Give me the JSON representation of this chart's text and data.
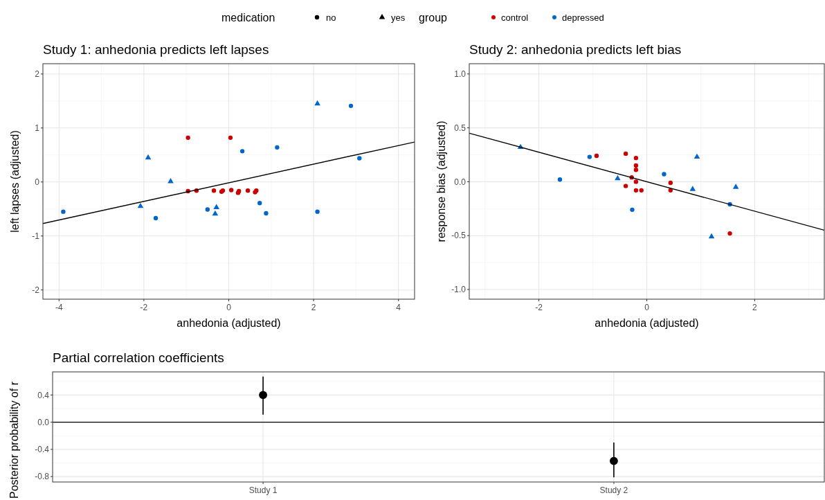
{
  "chart_data": [
    {
      "type": "scatter",
      "title": "Study 1: anhedonia predicts left lapses",
      "xlabel": "anhedonia (adjusted)",
      "ylabel": "left lapses (adjusted)",
      "legend": "top",
      "legend_title": "group",
      "annotations": [
        "medication",
        "no",
        "yes"
      ],
      "grid": true,
      "xlim": [
        -4.38,
        4.38
      ],
      "xticks": [
        -4,
        -2,
        0,
        2,
        4
      ],
      "ylim": [
        -2.17,
        2.19
      ],
      "yticks": [
        -2,
        -1,
        0,
        1,
        2
      ],
      "series": [
        {
          "name": "control",
          "color": "#cc0000",
          "marker": "circle",
          "x": [
            -0.96,
            0.04,
            -0.96,
            -0.76,
            -0.35,
            -0.17,
            -0.14,
            0.06,
            0.22,
            0.24,
            0.45,
            0.62,
            0.65
          ],
          "values": [
            0.82,
            0.82,
            -0.17,
            -0.16,
            -0.16,
            -0.18,
            -0.16,
            -0.15,
            -0.2,
            -0.17,
            -0.16,
            -0.19,
            -0.16
          ]
        },
        {
          "name": "depressed",
          "color": "#0066cc",
          "marker": "circle",
          "x": [
            -3.9,
            -1.72,
            0.32,
            1.14,
            2.88,
            3.08,
            -0.5,
            0.73,
            0.88,
            2.09
          ],
          "values": [
            -0.55,
            -0.67,
            0.57,
            0.64,
            1.41,
            0.44,
            -0.51,
            -0.39,
            -0.58,
            -0.55
          ]
        },
        {
          "color": "#0066cc",
          "marker": "triangle",
          "x": [
            -1.9,
            -1.37,
            -2.08,
            2.09,
            -0.29,
            -0.32
          ],
          "values": [
            0.45,
            0.01,
            -0.45,
            1.45,
            -0.47,
            -0.59
          ]
        },
        {
          "type": "line",
          "color": "#000000",
          "x": [
            -4.38,
            4.38
          ],
          "values": [
            -0.77,
            0.74
          ]
        }
      ]
    },
    {
      "type": "scatter",
      "title": "Study 2: anhedonia predicts left bias",
      "xlabel": "anhedonia (adjusted)",
      "ylabel": "response bias (adjusted)",
      "grid": true,
      "xlim": [
        -3.29,
        3.29
      ],
      "xticks": [
        -2,
        0,
        2
      ],
      "ylim": [
        -1.09,
        1.095
      ],
      "yticks": [
        {
          "value": -1,
          "label": "-1.0"
        },
        -0.5,
        {
          "value": 0,
          "label": "0.0"
        },
        0.5,
        {
          "value": 1,
          "label": "1.0"
        }
      ],
      "series": [
        {
          "color": "#cc0000",
          "marker": "circle",
          "x": [
            -0.93,
            -0.39,
            -0.2,
            -0.2,
            -0.2,
            -0.28,
            -0.2,
            -0.39,
            -0.2,
            -0.1,
            0.44,
            0.44,
            1.54
          ],
          "values": [
            0.24,
            0.26,
            0.22,
            0.15,
            0.11,
            0.04,
            0.0,
            -0.04,
            -0.08,
            -0.08,
            -0.01,
            -0.08,
            -0.48
          ]
        },
        {
          "color": "#0066cc",
          "marker": "circle",
          "x": [
            -1.61,
            -1.06,
            -0.27,
            0.32,
            1.54
          ],
          "values": [
            0.02,
            0.23,
            -0.26,
            0.07,
            -0.21
          ]
        },
        {
          "color": "#0066cc",
          "marker": "triangle",
          "x": [
            -2.34,
            -0.54,
            0.93,
            0.85,
            1.2,
            1.65
          ],
          "values": [
            0.32,
            0.03,
            0.23,
            -0.07,
            -0.51,
            -0.05
          ]
        },
        {
          "type": "line",
          "color": "#000000",
          "x": [
            -3.29,
            3.29
          ],
          "values": [
            0.45,
            -0.45
          ]
        }
      ]
    },
    {
      "type": "scatter",
      "title": "Partial correlation coefficients",
      "ylabel": "Posterior probability of r",
      "grid": true,
      "categories": [
        "Study 1",
        "Study 2"
      ],
      "values": [
        0.4,
        -0.57
      ],
      "errors": [
        [
          0.11,
          0.67
        ],
        [
          -0.81,
          -0.3
        ]
      ],
      "color": "#000000",
      "marker": "circle",
      "ylim": [
        -0.88,
        0.74
      ],
      "yticks": [
        -0.8,
        -0.4,
        {
          "value": 0,
          "label": "0.0"
        },
        0.4
      ],
      "ref_lines": [
        {
          "axis": "y",
          "value": 0,
          "color": "#000000"
        }
      ]
    }
  ]
}
